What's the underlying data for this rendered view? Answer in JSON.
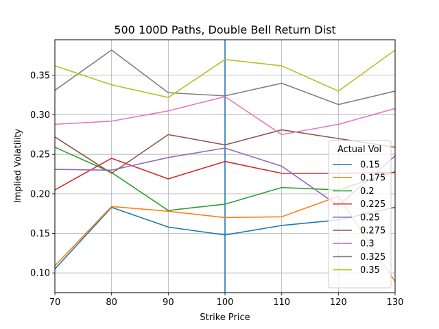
{
  "chart_data": {
    "type": "line",
    "title": "500 100D Paths, Double Bell Return Dist",
    "xlabel": "Strike Price",
    "ylabel": "Implied Volatility",
    "xlim": [
      70,
      130
    ],
    "ylim": [
      0.075,
      0.395
    ],
    "x": [
      70,
      80,
      90,
      100,
      110,
      120,
      130
    ],
    "xticks": [
      "70",
      "80",
      "90",
      "100",
      "110",
      "120",
      "130"
    ],
    "yticks": [
      0.1,
      0.15,
      0.2,
      0.25,
      0.3,
      0.35
    ],
    "ytick_labels": [
      "0.10",
      "0.15",
      "0.20",
      "0.25",
      "0.30",
      "0.35"
    ],
    "grid": true,
    "vline": {
      "x": 100,
      "color": "#1f77b4"
    },
    "legend": {
      "title": "Actual Vol",
      "placement": "lower-right"
    },
    "series": [
      {
        "name": "0.15",
        "color": "#1f77b4",
        "values": [
          0.105,
          0.183,
          0.158,
          0.148,
          0.16,
          0.167,
          0.183
        ]
      },
      {
        "name": "0.175",
        "color": "#ff7f0e",
        "values": [
          0.109,
          0.184,
          0.178,
          0.17,
          0.171,
          0.197,
          0.089
        ]
      },
      {
        "name": "0.2",
        "color": "#2ca02c",
        "values": [
          0.259,
          0.227,
          0.179,
          0.187,
          0.208,
          0.205,
          0.228
        ]
      },
      {
        "name": "0.225",
        "color": "#d62728",
        "values": [
          0.205,
          0.245,
          0.219,
          0.241,
          0.226,
          0.226,
          0.227
        ]
      },
      {
        "name": "0.25",
        "color": "#9467bd",
        "values": [
          0.231,
          0.23,
          0.246,
          0.258,
          0.235,
          0.185,
          0.248
        ]
      },
      {
        "name": "0.275",
        "color": "#8c564b",
        "values": [
          0.272,
          0.226,
          0.275,
          0.262,
          0.281,
          0.27,
          0.259
        ]
      },
      {
        "name": "0.3",
        "color": "#e377c2",
        "values": [
          0.288,
          0.292,
          0.305,
          0.323,
          0.275,
          0.288,
          0.308
        ]
      },
      {
        "name": "0.325",
        "color": "#7f7f7f",
        "values": [
          0.331,
          0.382,
          0.328,
          0.324,
          0.34,
          0.313,
          0.33
        ]
      },
      {
        "name": "0.35",
        "color": "#bcbd22",
        "values": [
          0.362,
          0.338,
          0.322,
          0.37,
          0.362,
          0.33,
          0.382
        ]
      }
    ]
  }
}
